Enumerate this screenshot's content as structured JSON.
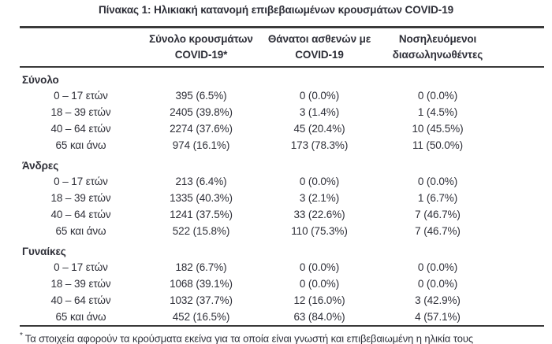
{
  "title": "Πίνακας 1: Ηλικιακή κατανομή επιβεβαιωμένων κρουσμάτων COVID-19",
  "table": {
    "column_headers": [
      {
        "line1": "Σύνολο κρουσμάτων",
        "line2": "COVID-19*"
      },
      {
        "line1": "Θάνατοι ασθενών με",
        "line2": "COVID-19"
      },
      {
        "line1": "Νοσηλευόμενοι",
        "line2": "διασωληνωθέντες"
      }
    ],
    "sections": [
      {
        "label": "Σύνολο",
        "rows": [
          {
            "age_group": "0 – 17 ετών",
            "cases": "395 (6.5%)",
            "deaths": "0 (0.0%)",
            "intubated": "0 (0.0%)"
          },
          {
            "age_group": "18 – 39 ετών",
            "cases": "2405 (39.8%)",
            "deaths": "3 (1.4%)",
            "intubated": "1 (4.5%)"
          },
          {
            "age_group": "40 – 64 ετών",
            "cases": "2274 (37.6%)",
            "deaths": "45 (20.4%)",
            "intubated": "10 (45.5%)"
          },
          {
            "age_group": "65 και άνω",
            "cases": "974 (16.1%)",
            "deaths": "173 (78.3%)",
            "intubated": "11 (50.0%)"
          }
        ]
      },
      {
        "label": "Άνδρες",
        "rows": [
          {
            "age_group": "0 – 17 ετών",
            "cases": "213 (6.4%)",
            "deaths": "0 (0.0%)",
            "intubated": "0 (0.0%)"
          },
          {
            "age_group": "18 – 39 ετών",
            "cases": "1335 (40.3%)",
            "deaths": "3 (2.1%)",
            "intubated": "1 (6.7%)"
          },
          {
            "age_group": "40 – 64 ετών",
            "cases": "1241 (37.5%)",
            "deaths": "33 (22.6%)",
            "intubated": "7 (46.7%)"
          },
          {
            "age_group": "65 και άνω",
            "cases": "522 (15.8%)",
            "deaths": "110 (75.3%)",
            "intubated": "7 (46.7%)"
          }
        ]
      },
      {
        "label": "Γυναίκες",
        "rows": [
          {
            "age_group": "0 – 17 ετών",
            "cases": "182 (6.7%)",
            "deaths": "0 (0.0%)",
            "intubated": "0 (0.0%)"
          },
          {
            "age_group": "18 – 39 ετών",
            "cases": "1068 (39.1%)",
            "deaths": "0 (0.0%)",
            "intubated": "0 (0.0%)"
          },
          {
            "age_group": "40 – 64 ετών",
            "cases": "1032 (37.7%)",
            "deaths": "12 (16.0%)",
            "intubated": "3 (42.9%)"
          },
          {
            "age_group": "65 και άνω",
            "cases": "452 (16.5%)",
            "deaths": "63 (84.0%)",
            "intubated": "4 (57.1%)"
          }
        ]
      }
    ]
  },
  "footnote": {
    "marker": "*",
    "text": "Τα στοιχεία αφορούν τα κρούσματα εκείνα για τα οποία είναι γνωστή και επιβεβαιωμένη η ηλικία τους"
  },
  "colors": {
    "text": "#2e2f38",
    "border": "#3a3a3a",
    "background": "#ffffff"
  }
}
